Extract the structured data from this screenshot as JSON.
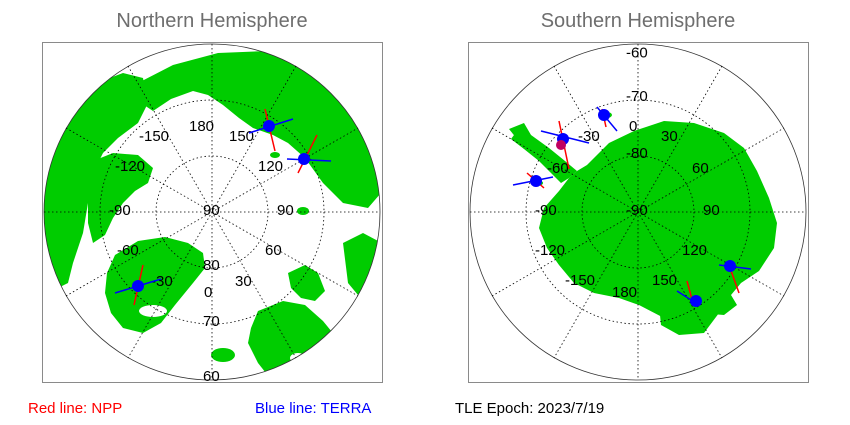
{
  "north": {
    "title": "Northern Hemisphere",
    "lon_labels": [
      "180",
      "-150",
      "150",
      "-120",
      "120",
      "-90",
      "90",
      "-60",
      "60",
      "-30",
      "30",
      "0"
    ],
    "lat_labels": [
      "90",
      "80",
      "70",
      "60"
    ]
  },
  "south": {
    "title": "Southern Hemisphere",
    "lon_labels": [
      "-30",
      "0",
      "30",
      "60",
      "-60",
      "-90",
      "90",
      "-120",
      "120",
      "-150",
      "150",
      "180"
    ],
    "lat_labels": [
      "-60",
      "-70",
      "-80",
      "-90"
    ]
  },
  "legend": {
    "npp": "Red line: NPP",
    "terra": "Blue line: TERRA",
    "epoch": "TLE Epoch: 2023/7/19"
  },
  "colors": {
    "land": "#00cc00",
    "npp": "#ff0000",
    "terra": "#0000ff",
    "marker": "#0000ff",
    "graticule": "#000000",
    "title": "#6e6e6e"
  }
}
